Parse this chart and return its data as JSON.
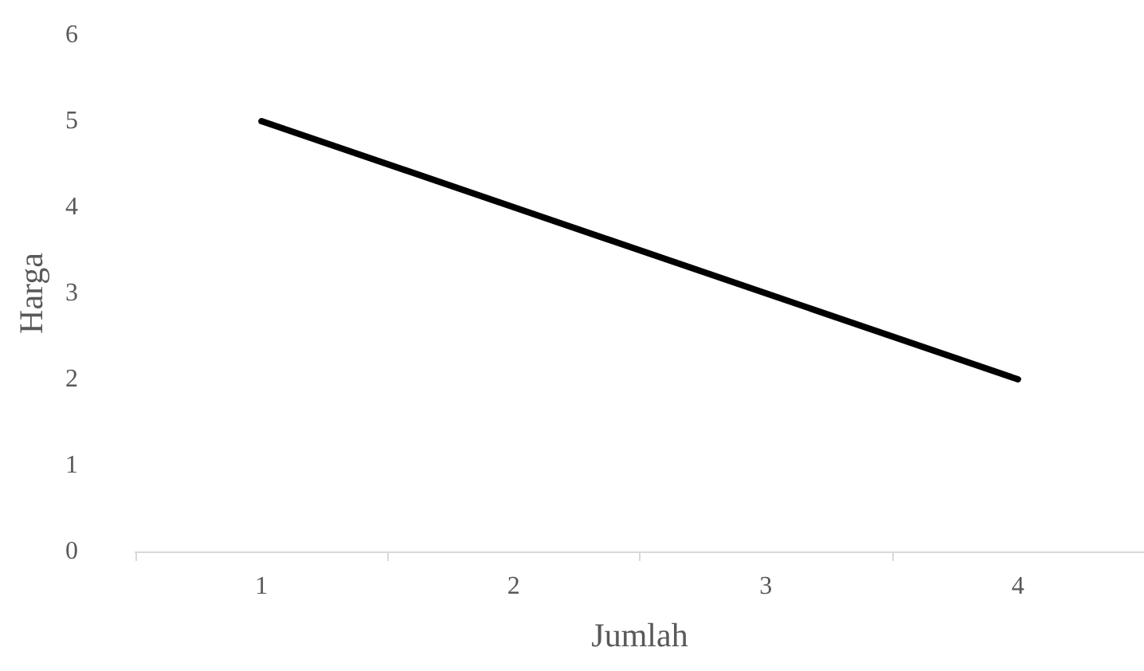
{
  "chart_data": {
    "type": "line",
    "xlabel": "Jumlah",
    "ylabel": "Harga",
    "categories": [
      "1",
      "2",
      "3",
      "4"
    ],
    "series": [
      {
        "color": "#000000",
        "values": [
          5,
          4,
          3,
          2
        ]
      }
    ],
    "ylim": [
      0,
      6
    ],
    "yticks": [
      0,
      1,
      2,
      3,
      4,
      5,
      6
    ],
    "grid": false,
    "marker": "none",
    "line_style": "solid"
  }
}
